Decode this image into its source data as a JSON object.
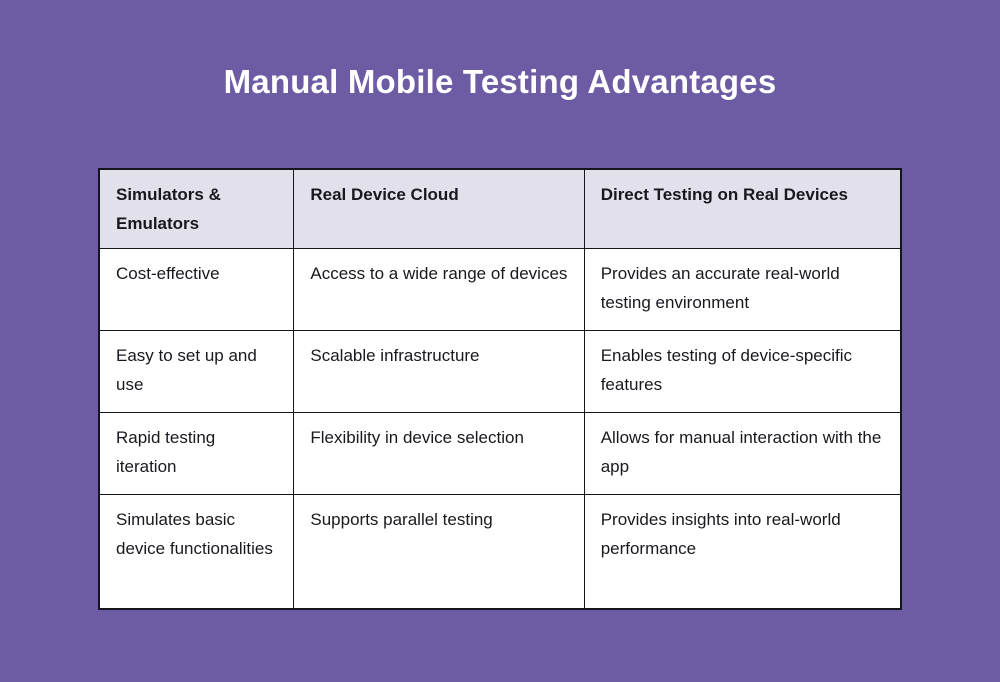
{
  "page": {
    "title": "Manual Mobile Testing Advantages",
    "colors": {
      "background": "#6d5ba3",
      "header_bg": "#e2e0ea",
      "cell_bg": "#ffffff",
      "border": "#15151d",
      "text": "#18181f",
      "title_text": "#ffffff"
    }
  },
  "chart_data": {
    "type": "table",
    "title": "Manual Mobile Testing Advantages",
    "columns": [
      "Simulators & Emulators",
      "Real Device Cloud",
      "Direct Testing on Real Devices"
    ],
    "rows": [
      [
        "Cost-effective",
        "Access to a wide range of devices",
        "Provides an accurate real-world testing environment"
      ],
      [
        "Easy to set up and use",
        "Scalable infrastructure",
        "Enables testing of device-specific features"
      ],
      [
        "Rapid testing iteration",
        "Flexibility in device selection",
        "Allows for manual interaction with the app"
      ],
      [
        "Simulates basic device functionalities",
        "Supports parallel testing",
        "Provides insights into real-world performance"
      ]
    ],
    "layout": {
      "grid": true,
      "header_row": true,
      "legend": "none"
    }
  }
}
